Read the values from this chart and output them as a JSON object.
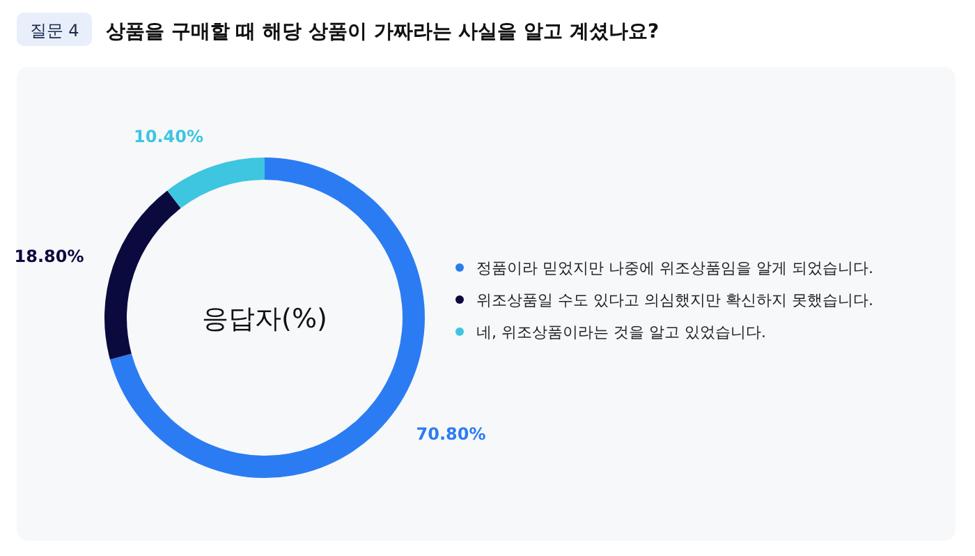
{
  "chart_data": {
    "type": "donut",
    "title": "질문 4",
    "subtitle": "상품을 구매할 때 해당 상품이 가짜라는 사실을 알고 계셨나요?",
    "categories": [
      "정품이라 믿었지만 나중에 위조상품임을 알게 되었습니다.",
      "위조상품일 수도 있다고 의심했지만 확신하지 못했습니다.",
      "네, 위조상품이라는 것을 알고 있었습니다."
    ],
    "values": [
      70.8,
      18.8,
      10.4
    ],
    "colors": [
      "#2b7cf2",
      "#0b0a3e",
      "#3ec5e0"
    ],
    "value_labels": [
      "70.80%",
      "18.80%",
      "10.40%"
    ],
    "annotations": [
      "응답자(%)"
    ],
    "legend": "right"
  }
}
